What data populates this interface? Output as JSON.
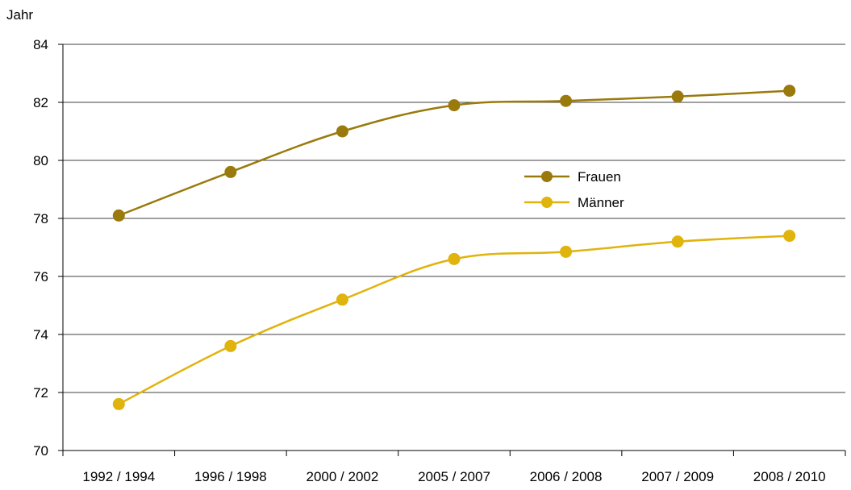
{
  "chart_data": {
    "type": "line",
    "ylabel": "Jahr",
    "ylim": [
      70,
      84
    ],
    "yticks": [
      "70",
      "72",
      "74",
      "76",
      "78",
      "80",
      "82",
      "84"
    ],
    "categories": [
      "1992 / 1994",
      "1996 / 1998",
      "2000 / 2002",
      "2005 / 2007",
      "2006 / 2008",
      "2007 / 2009",
      "2008 / 2010"
    ],
    "grid": true,
    "legend_position": "center-right",
    "series": [
      {
        "name": "Frauen",
        "color": "#9a7a0c",
        "values": [
          78.1,
          79.6,
          81.0,
          81.9,
          82.05,
          82.2,
          82.4
        ]
      },
      {
        "name": "Männer",
        "color": "#e0b30d",
        "values": [
          71.6,
          73.6,
          75.2,
          76.6,
          76.85,
          77.2,
          77.4
        ]
      }
    ]
  }
}
